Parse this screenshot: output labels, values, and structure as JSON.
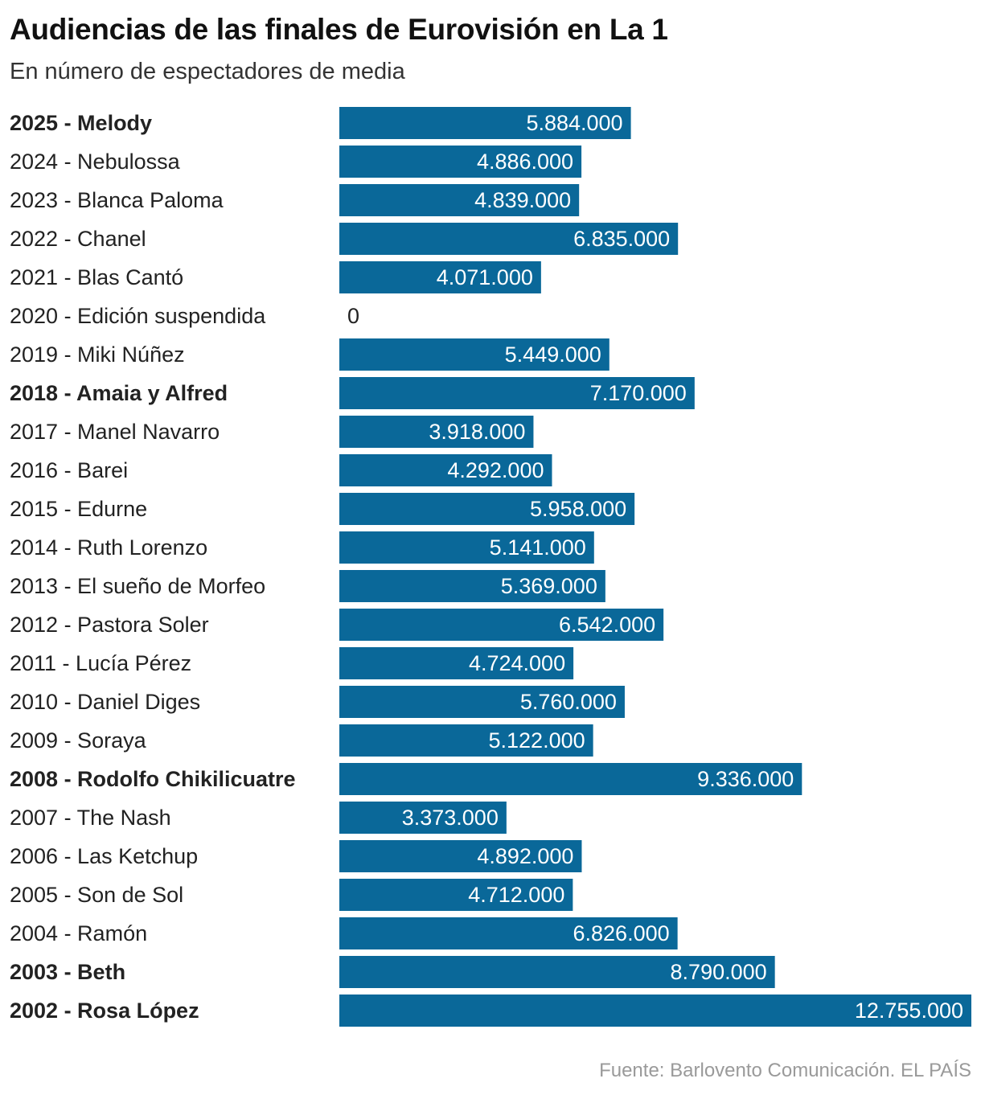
{
  "header": {
    "title": "Audiencias de las finales de Eurovisión en La 1",
    "subtitle": "En número de espectadores de media"
  },
  "footer": {
    "source": "Fuente: Barlovento Comunicación. EL PAÍS"
  },
  "colors": {
    "bar": "#0a6899",
    "bar_label": "#ffffff",
    "label": "#222222",
    "zero_label": "#222222"
  },
  "chart_data": {
    "type": "bar",
    "orientation": "horizontal",
    "title": "Audiencias de las finales de Eurovisión en La 1",
    "subtitle": "En número de espectadores de media",
    "categories": [
      "2025 - Melody",
      "2024 - Nebulossa",
      "2023 - Blanca Paloma",
      "2022 - Chanel",
      "2021 - Blas Cantó",
      "2020 - Edición suspendida",
      "2019 - Miki Núñez",
      "2018 - Amaia y Alfred",
      "2017 - Manel Navarro",
      "2016 - Barei",
      "2015 - Edurne",
      "2014 - Ruth Lorenzo",
      "2013 - El sueño de Morfeo",
      "2012 - Pastora Soler",
      "2011 - Lucía Pérez",
      "2010 - Daniel Diges",
      "2009 - Soraya",
      "2008 - Rodolfo Chikilicuatre",
      "2007 - The Nash",
      "2006 - Las Ketchup",
      "2005 - Son de Sol",
      "2004 - Ramón",
      "2003 - Beth",
      "2002 - Rosa López"
    ],
    "values": [
      5884000,
      4886000,
      4839000,
      6835000,
      4071000,
      0,
      5449000,
      7170000,
      3918000,
      4292000,
      5958000,
      5141000,
      5369000,
      6542000,
      4724000,
      5760000,
      5122000,
      9336000,
      3373000,
      4892000,
      4712000,
      6826000,
      8790000,
      12755000
    ],
    "value_labels": [
      "5.884.000",
      "4.886.000",
      "4.839.000",
      "6.835.000",
      "4.071.000",
      "0",
      "5.449.000",
      "7.170.000",
      "3.918.000",
      "4.292.000",
      "5.958.000",
      "5.141.000",
      "5.369.000",
      "6.542.000",
      "4.724.000",
      "5.760.000",
      "5.122.000",
      "9.336.000",
      "3.373.000",
      "4.892.000",
      "4.712.000",
      "6.826.000",
      "8.790.000",
      "12.755.000"
    ],
    "bold": [
      true,
      false,
      false,
      false,
      false,
      false,
      false,
      true,
      false,
      false,
      false,
      false,
      false,
      false,
      false,
      false,
      false,
      true,
      false,
      false,
      false,
      false,
      true,
      true
    ],
    "xlim": [
      0,
      12755000
    ],
    "grid": false,
    "legend": "none"
  }
}
